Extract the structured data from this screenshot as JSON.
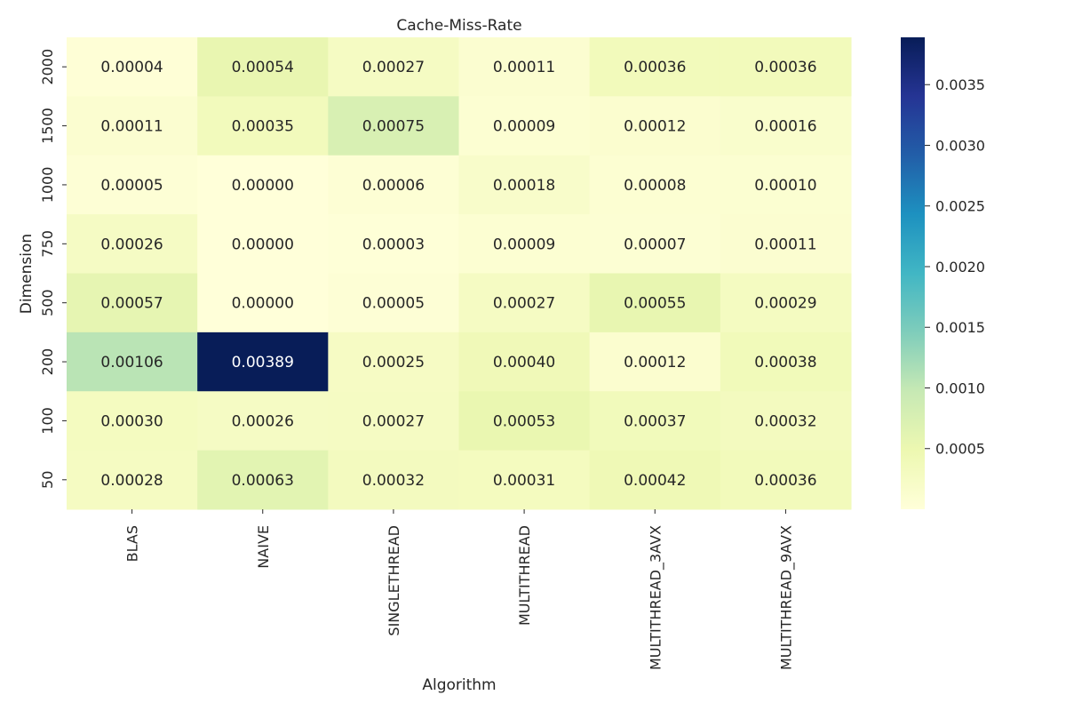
{
  "chart_data": {
    "type": "heatmap",
    "title": "Cache-Miss-Rate",
    "xlabel": "Algorithm",
    "ylabel": "Dimension",
    "x_categories": [
      "BLAS",
      "NAIVE",
      "SINGLETHREAD",
      "MULTITHREAD",
      "MULTITHREAD_3AVX",
      "MULTITHREAD_9AVX"
    ],
    "y_categories": [
      "2000",
      "1500",
      "1000",
      "750",
      "500",
      "200",
      "100",
      "50"
    ],
    "values": [
      [
        4e-05,
        0.00054,
        0.00027,
        0.00011,
        0.00036,
        0.00036
      ],
      [
        0.00011,
        0.00035,
        0.00075,
        9e-05,
        0.00012,
        0.00016
      ],
      [
        5e-05,
        0.0,
        6e-05,
        0.00018,
        8e-05,
        0.0001
      ],
      [
        0.00026,
        0.0,
        3e-05,
        9e-05,
        7e-05,
        0.00011
      ],
      [
        0.00057,
        0.0,
        5e-05,
        0.00027,
        0.00055,
        0.00029
      ],
      [
        0.00106,
        0.00389,
        0.00025,
        0.0004,
        0.00012,
        0.00038
      ],
      [
        0.0003,
        0.00026,
        0.00027,
        0.00053,
        0.00037,
        0.00032
      ],
      [
        0.00028,
        0.00063,
        0.00032,
        0.00031,
        0.00042,
        0.00036
      ]
    ],
    "labels": [
      [
        "0.00004",
        "0.00054",
        "0.00027",
        "0.00011",
        "0.00036",
        "0.00036"
      ],
      [
        "0.00011",
        "0.00035",
        "0.00075",
        "0.00009",
        "0.00012",
        "0.00016"
      ],
      [
        "0.00005",
        "0.00000",
        "0.00006",
        "0.00018",
        "0.00008",
        "0.00010"
      ],
      [
        "0.00026",
        "0.00000",
        "0.00003",
        "0.00009",
        "0.00007",
        "0.00011"
      ],
      [
        "0.00057",
        "0.00000",
        "0.00005",
        "0.00027",
        "0.00055",
        "0.00029"
      ],
      [
        "0.00106",
        "0.00389",
        "0.00025",
        "0.00040",
        "0.00012",
        "0.00038"
      ],
      [
        "0.00030",
        "0.00026",
        "0.00027",
        "0.00053",
        "0.00037",
        "0.00032"
      ],
      [
        "0.00028",
        "0.00063",
        "0.00032",
        "0.00031",
        "0.00042",
        "0.00036"
      ]
    ],
    "colorbar": {
      "vmin": 0.0,
      "vmax": 0.00389,
      "ticks": [
        0.0005,
        0.001,
        0.0015,
        0.002,
        0.0025,
        0.003,
        0.0035
      ],
      "tick_labels": [
        "0.0005",
        "0.0010",
        "0.0015",
        "0.0020",
        "0.0025",
        "0.0030",
        "0.0035"
      ],
      "colormap": "YlGnBu"
    },
    "grid": false,
    "legend": "colorbar-right"
  }
}
